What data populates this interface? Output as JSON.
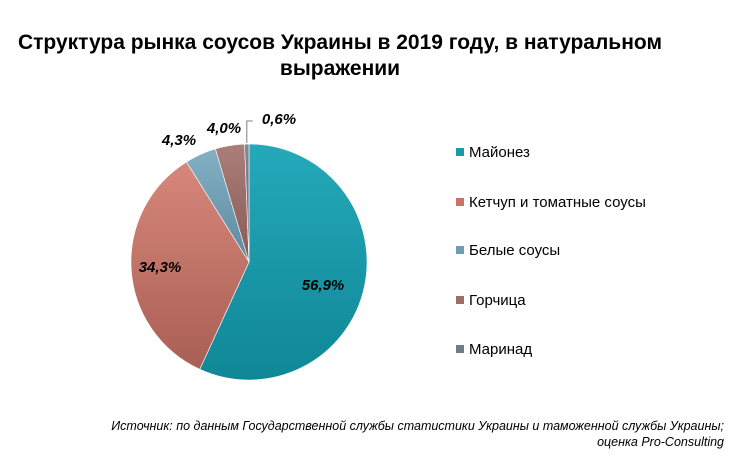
{
  "chart_data": {
    "type": "pie",
    "title": "Структура рынка соусов Украины в 2019 году, в натуральном выражении",
    "categories": [
      "Майонез",
      "Кетчуп и томатные соусы",
      "Белые соусы",
      "Горчица",
      "Маринад"
    ],
    "values": [
      56.9,
      34.3,
      4.3,
      4.0,
      0.6
    ],
    "data_labels": [
      "56,9%",
      "34,3%",
      "4,3%",
      "4,0%",
      "0,6%"
    ],
    "unit": "%",
    "legend_position": "right",
    "colors": [
      "#1a99aa",
      "#c97566",
      "#6e9db3",
      "#9c6c67",
      "#6f7a8f"
    ]
  },
  "source_note": {
    "line1": "Источник: по данным Государственной службы статистики Украины и таможенной службы Украины;",
    "line2": "оценка Pro-Consulting"
  }
}
